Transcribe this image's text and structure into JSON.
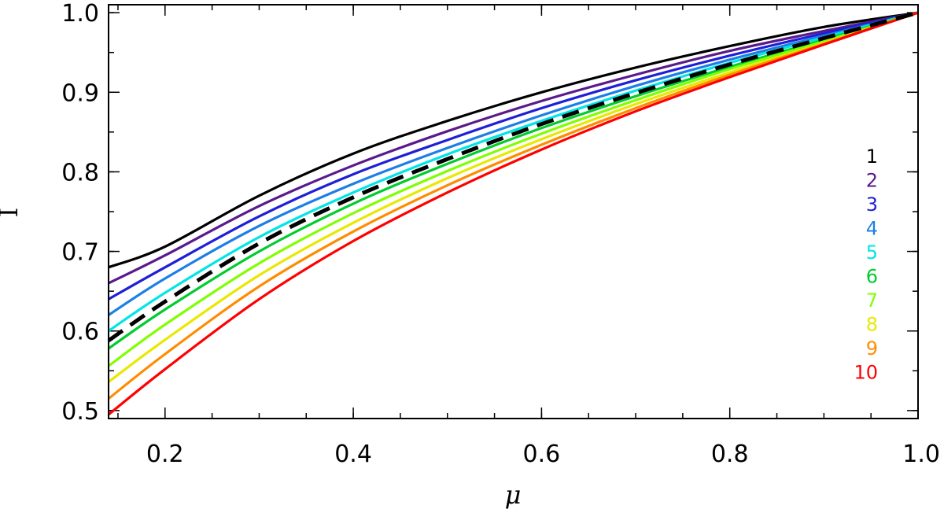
{
  "chart_data": {
    "type": "line",
    "title": "",
    "xlabel": "μ",
    "ylabel": "I",
    "xlim": [
      0.14,
      1.0
    ],
    "ylim": [
      0.49,
      1.01
    ],
    "grid": false,
    "legend_position": "right",
    "xticks": [
      {
        "value": 0.2,
        "label": "0.2"
      },
      {
        "value": 0.4,
        "label": "0.4"
      },
      {
        "value": 0.6,
        "label": "0.6"
      },
      {
        "value": 0.8,
        "label": "0.8"
      },
      {
        "value": 1.0,
        "label": "1.0"
      }
    ],
    "yticks": [
      {
        "value": 0.5,
        "label": "0.5"
      },
      {
        "value": 0.6,
        "label": "0.6"
      },
      {
        "value": 0.7,
        "label": "0.7"
      },
      {
        "value": 0.8,
        "label": "0.8"
      },
      {
        "value": 0.9,
        "label": "0.9"
      },
      {
        "value": 1.0,
        "label": "1.0"
      }
    ],
    "x_minor_step": 0.05,
    "y_minor_step": 0.05,
    "x": [
      0.14,
      0.2,
      0.3,
      0.4,
      0.5,
      0.6,
      0.7,
      0.8,
      0.9,
      1.0
    ],
    "series": [
      {
        "name": "1",
        "color": "#000000",
        "style": "solid",
        "values": [
          0.68,
          0.706,
          0.77,
          0.823,
          0.864,
          0.9,
          0.931,
          0.958,
          0.982,
          1.0
        ]
      },
      {
        "name": "2",
        "color": "#5a1a8c",
        "style": "solid",
        "values": [
          0.66,
          0.695,
          0.757,
          0.808,
          0.851,
          0.889,
          0.922,
          0.952,
          0.977,
          1.0
        ]
      },
      {
        "name": "3",
        "color": "#1f1fd6",
        "style": "solid",
        "values": [
          0.64,
          0.68,
          0.744,
          0.797,
          0.84,
          0.88,
          0.915,
          0.946,
          0.974,
          1.0
        ]
      },
      {
        "name": "4",
        "color": "#1c7fe6",
        "style": "solid",
        "values": [
          0.62,
          0.666,
          0.732,
          0.785,
          0.83,
          0.871,
          0.908,
          0.941,
          0.971,
          1.0
        ]
      },
      {
        "name": "5",
        "color": "#00e5e5",
        "style": "solid",
        "values": [
          0.6,
          0.648,
          0.718,
          0.774,
          0.822,
          0.864,
          0.902,
          0.937,
          0.969,
          1.0
        ]
      },
      {
        "name": "6",
        "color": "#00cc2e",
        "style": "solid",
        "values": [
          0.578,
          0.627,
          0.7,
          0.76,
          0.81,
          0.855,
          0.895,
          0.932,
          0.966,
          1.0
        ]
      },
      {
        "name": "7",
        "color": "#7fff00",
        "style": "solid",
        "values": [
          0.556,
          0.608,
          0.685,
          0.748,
          0.801,
          0.848,
          0.89,
          0.929,
          0.964,
          1.0
        ]
      },
      {
        "name": "8",
        "color": "#e8e800",
        "style": "solid",
        "values": [
          0.536,
          0.589,
          0.67,
          0.736,
          0.792,
          0.841,
          0.885,
          0.925,
          0.962,
          1.0
        ]
      },
      {
        "name": "9",
        "color": "#ff8c00",
        "style": "solid",
        "values": [
          0.515,
          0.571,
          0.656,
          0.725,
          0.783,
          0.834,
          0.88,
          0.922,
          0.961,
          1.0
        ]
      },
      {
        "name": "10",
        "color": "#ff0000",
        "style": "solid",
        "values": [
          0.495,
          0.552,
          0.64,
          0.713,
          0.774,
          0.828,
          0.876,
          0.919,
          0.96,
          1.0
        ]
      },
      {
        "name": "",
        "color": "#000000",
        "style": "dashed",
        "values": [
          0.588,
          0.637,
          0.71,
          0.768,
          0.816,
          0.86,
          0.899,
          0.935,
          0.968,
          1.0
        ]
      }
    ]
  }
}
